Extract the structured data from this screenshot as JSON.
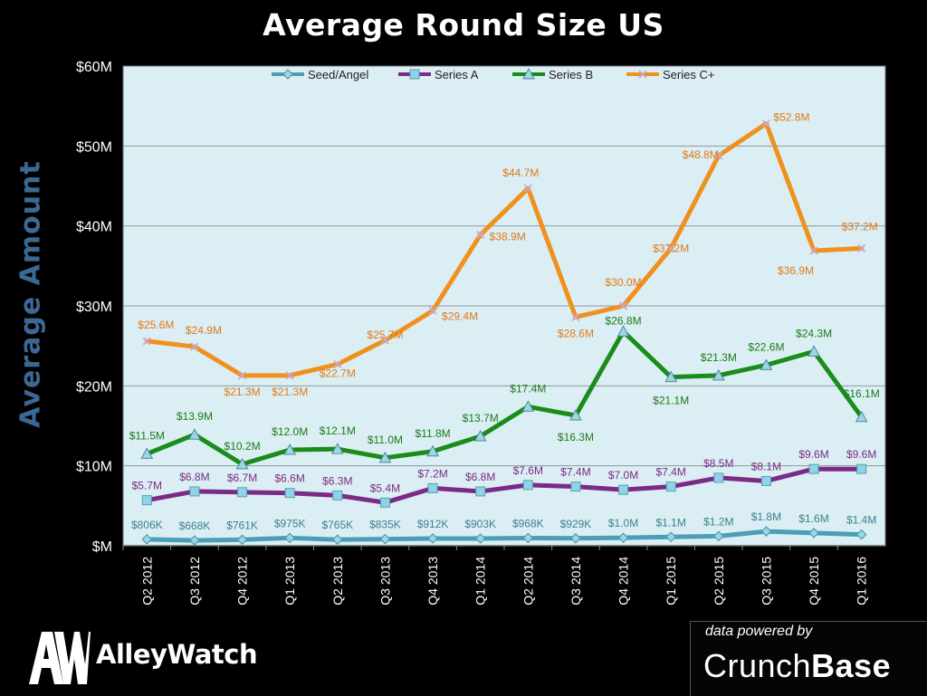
{
  "page": {
    "title": "Average Round Size US",
    "ylabel": "Average Amount",
    "logo_initials": "AW",
    "logo_text": "AlleyWatch",
    "powered_by_label": "data powered by",
    "powered_by_brand_light": "Crunch",
    "powered_by_brand_bold": "Base"
  },
  "chart_data": {
    "type": "line",
    "title": "Average Round Size US",
    "xlabel": "",
    "ylabel": "Average Amount",
    "ylim": [
      0,
      60
    ],
    "yticks": [
      0,
      10,
      20,
      30,
      40,
      50,
      60
    ],
    "ytick_labels": [
      "$M",
      "$10M",
      "$20M",
      "$30M",
      "$40M",
      "$50M",
      "$60M"
    ],
    "grid": true,
    "legend_position": "top-center",
    "categories": [
      "Q2 2012",
      "Q3 2012",
      "Q4 2012",
      "Q1 2013",
      "Q2 2013",
      "Q3 2013",
      "Q4 2013",
      "Q1 2014",
      "Q2 2014",
      "Q3 2014",
      "Q4 2014",
      "Q1 2015",
      "Q2 2015",
      "Q3 2015",
      "Q4 2015",
      "Q1 2016"
    ],
    "series": [
      {
        "name": "Seed/Angel",
        "color": "#4a9eb5",
        "marker": "diamond",
        "values": [
          0.806,
          0.668,
          0.761,
          0.975,
          0.765,
          0.835,
          0.912,
          0.903,
          0.968,
          0.929,
          1.0,
          1.1,
          1.2,
          1.8,
          1.6,
          1.4
        ],
        "labels": [
          "$806K",
          "$668K",
          "$761K",
          "$975K",
          "$765K",
          "$835K",
          "$912K",
          "$903K",
          "$968K",
          "$929K",
          "$1.0M",
          "$1.1M",
          "$1.2M",
          "$1.8M",
          "$1.6M",
          "$1.4M"
        ],
        "label_color": "#3e7f92"
      },
      {
        "name": "Series A",
        "color": "#7b2a86",
        "marker": "square",
        "values": [
          5.7,
          6.8,
          6.7,
          6.6,
          6.3,
          5.4,
          7.2,
          6.8,
          7.6,
          7.4,
          7.0,
          7.4,
          8.5,
          8.1,
          9.6,
          9.6
        ],
        "labels": [
          "$5.7M",
          "$6.8M",
          "$6.7M",
          "$6.6M",
          "$6.3M",
          "$5.4M",
          "$7.2M",
          "$6.8M",
          "$7.6M",
          "$7.4M",
          "$7.0M",
          "$7.4M",
          "$8.5M",
          "$8.1M",
          "$9.6M",
          "$9.6M"
        ],
        "label_color": "#7b2a86"
      },
      {
        "name": "Series B",
        "color": "#1a8c1a",
        "marker": "triangle",
        "values": [
          11.5,
          13.9,
          10.2,
          12.0,
          12.1,
          11.0,
          11.8,
          13.7,
          17.4,
          16.3,
          26.8,
          21.1,
          21.3,
          22.6,
          24.3,
          16.1
        ],
        "labels": [
          "$11.5M",
          "$13.9M",
          "$10.2M",
          "$12.0M",
          "$12.1M",
          "$11.0M",
          "$11.8M",
          "$13.7M",
          "$17.4M",
          "$16.3M",
          "$26.8M",
          "$21.1M",
          "$21.3M",
          "$22.6M",
          "$24.3M",
          "$16.1M"
        ],
        "label_color": "#1a7d1a"
      },
      {
        "name": "Series C+",
        "color": "#f0901e",
        "marker": "x",
        "values": [
          25.6,
          24.9,
          21.3,
          21.3,
          22.7,
          25.7,
          29.4,
          38.9,
          44.7,
          28.6,
          30.0,
          37.2,
          48.8,
          52.8,
          36.9,
          37.2
        ],
        "labels": [
          "$25.6M",
          "$24.9M",
          "$21.3M",
          "$21.3M",
          "$22.7M",
          "$25.7M",
          "$29.4M",
          "$38.9M",
          "$44.7M",
          "$28.6M",
          "$30.0M",
          "$37.2M",
          "$48.8M",
          "$52.8M",
          "$36.9M",
          "$37.2M"
        ],
        "label_color": "#e07a1a"
      }
    ]
  }
}
